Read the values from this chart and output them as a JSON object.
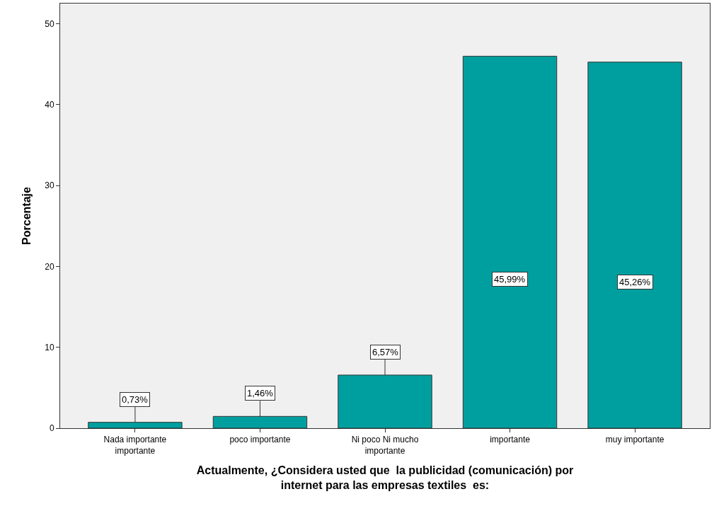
{
  "chart_data": {
    "type": "bar",
    "xlabel": "Actualmente, ¿Considera usted que  la publicidad (comunicación) por\ninternet para las empresas textiles  es:",
    "ylabel": "Porcentaje",
    "categories": [
      "Nada importante\nimportante",
      "poco importante",
      "Ni poco Ni mucho\nimportante",
      "importante",
      "muy importante"
    ],
    "values": [
      0.73,
      1.46,
      6.57,
      45.99,
      45.26
    ],
    "value_labels": [
      "0,73%",
      "1,46%",
      "6,57%",
      "45,99%",
      "45,26%"
    ],
    "color": "#009f9f",
    "ylim": [
      0,
      52.5
    ],
    "yticks": [
      0,
      10,
      20,
      30,
      40,
      50
    ],
    "grid": false,
    "legend": false
  }
}
